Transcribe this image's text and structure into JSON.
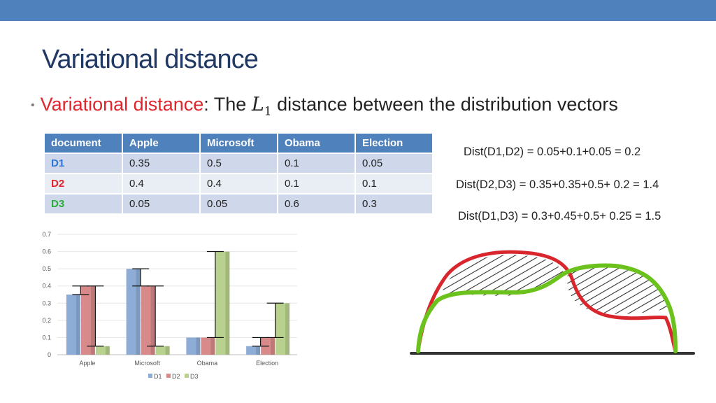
{
  "header": {
    "title": "Variational distance"
  },
  "bullet": {
    "term": "Variational distance",
    "colon": ":",
    "text_before": "The",
    "math_symbol": "L",
    "math_sub": "1",
    "text_after": "distance between the distribution vectors"
  },
  "table": {
    "headers": [
      "document",
      "Apple",
      "Microsoft",
      "Obama",
      "Election"
    ],
    "rows": [
      {
        "doc": "D1",
        "color": "#2e74d3",
        "values": [
          "0.35",
          "0.5",
          "0.1",
          "0.05"
        ]
      },
      {
        "doc": "D2",
        "color": "#e0262d",
        "values": [
          "0.4",
          "0.4",
          "0.1",
          "0.1"
        ]
      },
      {
        "doc": "D3",
        "color": "#2cab3c",
        "values": [
          "0.05",
          "0.05",
          "0.6",
          "0.3"
        ]
      }
    ]
  },
  "distances": [
    "Dist(D1,D2) = 0.05+0.1+0.05 = 0.2",
    "Dist(D2,D3) = 0.35+0.35+0.5+ 0.2  = 1.4",
    "Dist(D1,D3) = 0.3+0.45+0.5+ 0.25  = 1.5"
  ],
  "colors": {
    "accent": "#4f81bd",
    "title": "#1f3864",
    "term": "#e0262d",
    "curve_red": "#d9262c",
    "curve_green": "#6cc21c"
  },
  "chart_data": {
    "type": "bar",
    "categories": [
      "Apple",
      "Microsoft",
      "Obama",
      "Election"
    ],
    "series": [
      {
        "name": "D1",
        "values": [
          0.35,
          0.5,
          0.1,
          0.05
        ],
        "color": "#8eadd6"
      },
      {
        "name": "D2",
        "values": [
          0.4,
          0.4,
          0.1,
          0.1
        ],
        "color": "#d88a8a"
      },
      {
        "name": "D3",
        "values": [
          0.05,
          0.05,
          0.6,
          0.3
        ],
        "color": "#b9d18e"
      }
    ],
    "differences": [
      {
        "category": "Apple",
        "between": [
          "D1",
          "D2"
        ],
        "from": 0.35,
        "to": 0.4
      },
      {
        "category": "Apple",
        "between": [
          "D2",
          "D3"
        ],
        "from": 0.05,
        "to": 0.4
      },
      {
        "category": "Microsoft",
        "between": [
          "D1",
          "D2"
        ],
        "from": 0.4,
        "to": 0.5
      },
      {
        "category": "Microsoft",
        "between": [
          "D2",
          "D3"
        ],
        "from": 0.05,
        "to": 0.4
      },
      {
        "category": "Obama",
        "between": [
          "D2",
          "D3"
        ],
        "from": 0.1,
        "to": 0.6
      },
      {
        "category": "Election",
        "between": [
          "D1",
          "D2"
        ],
        "from": 0.05,
        "to": 0.1
      },
      {
        "category": "Election",
        "between": [
          "D2",
          "D3"
        ],
        "from": 0.1,
        "to": 0.3
      }
    ],
    "ylim": [
      0,
      0.7
    ],
    "yticks": [
      "0",
      "0.1",
      "0.2",
      "0.3",
      "0.4",
      "0.5",
      "0.6",
      "0.7"
    ],
    "grid": true,
    "legend_position": "bottom",
    "title": "",
    "xlabel": "",
    "ylabel": ""
  }
}
